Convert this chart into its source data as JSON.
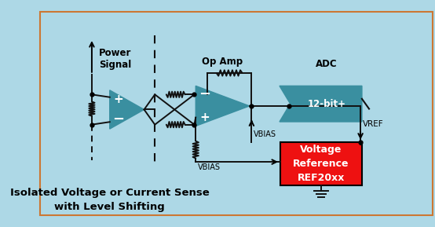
{
  "bg_color": "#add8e6",
  "border_color": "#cc7733",
  "title_text": "Isolated Voltage or Current Sense\nwith Level Shifting",
  "power_signal_label": "Power\nSignal",
  "op_amp_label": "Op Amp",
  "adc_label": "ADC",
  "adc_bit_label": "12-bit+",
  "vref_box_label": "Voltage\nReference\nREF20xx",
  "vbias_label1": "VBIAS",
  "vbias_label2": "VBIAS",
  "vref_label": "VREF",
  "teal_color": "#3a8fa0",
  "red_color": "#ee1111",
  "white_color": "#ffffff",
  "black_color": "#000000",
  "line_color": "#111111"
}
